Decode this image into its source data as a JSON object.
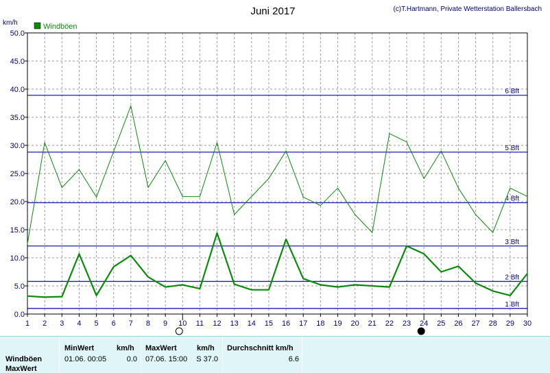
{
  "chart_data": {
    "type": "line",
    "title": "Juni 2017",
    "credit": "(c)T.Hartmann, Private Wetterstation Ballersbach",
    "ylabel": "km/h",
    "ylim": [
      0,
      50
    ],
    "yticks": [
      "0.0",
      "5.0",
      "10.0",
      "15.0",
      "20.0",
      "25.0",
      "30.0",
      "35.0",
      "40.0",
      "45.0",
      "50.0"
    ],
    "x": [
      1,
      2,
      3,
      4,
      5,
      6,
      7,
      8,
      9,
      10,
      11,
      12,
      13,
      14,
      15,
      16,
      17,
      18,
      19,
      20,
      21,
      22,
      23,
      24,
      25,
      26,
      27,
      28,
      29,
      30
    ],
    "grid": true,
    "legend_position": "top-left",
    "series": [
      {
        "name": "Windböen",
        "color": "#0a8a0a",
        "values": [
          12.5,
          30.5,
          22.5,
          25.7,
          20.8,
          28.9,
          37.0,
          22.5,
          27.3,
          20.9,
          20.9,
          30.5,
          17.7,
          20.9,
          24.1,
          29.0,
          20.8,
          19.3,
          22.4,
          17.7,
          14.5,
          32.1,
          30.6,
          24.1,
          29.0,
          22.4,
          17.7,
          14.5,
          22.4,
          20.9
        ]
      },
      {
        "name": "",
        "color": "#0a8a0a",
        "values": [
          3.2,
          3.0,
          3.1,
          10.7,
          3.3,
          8.4,
          10.4,
          6.6,
          4.8,
          5.2,
          4.5,
          14.4,
          5.3,
          4.3,
          4.3,
          13.3,
          6.3,
          5.2,
          4.8,
          5.2,
          5.0,
          4.8,
          12.1,
          10.7,
          7.5,
          8.5,
          5.5,
          4.1,
          3.3,
          7.2
        ]
      }
    ],
    "beaufort_lines": [
      {
        "label": "1 Bft",
        "value": 1.0
      },
      {
        "label": "2 Bft",
        "value": 5.8
      },
      {
        "label": "3 Bft",
        "value": 12.1
      },
      {
        "label": "4 Bft",
        "value": 19.8
      },
      {
        "label": "5 Bft",
        "value": 28.8
      },
      {
        "label": "6 Bft",
        "value": 38.9
      }
    ],
    "moon_phases": [
      {
        "day": 10,
        "phase": "full"
      },
      {
        "day": 24,
        "phase": "new"
      }
    ]
  },
  "stats": {
    "row_label_1": "Windböen",
    "row_label_2": "MaxWert",
    "min_header": "MinWert",
    "min_unit": "km/h",
    "min_time": "01.06.  00:05",
    "min_value": "0.0",
    "max_header": "MaxWert",
    "max_unit": "km/h",
    "max_time": "07.06.  15:00",
    "max_value": "S 37.0",
    "avg_header": "Durchschnitt km/h",
    "avg_value": "6.6"
  }
}
